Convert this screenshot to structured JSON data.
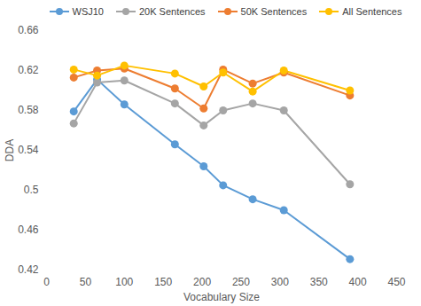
{
  "chart_data": {
    "type": "line",
    "x_label": "Vocabulary Size",
    "y_label": "DDA",
    "x": [
      35,
      65,
      100,
      165,
      202,
      227,
      265,
      305,
      390
    ],
    "series": [
      {
        "name": "WSJ10",
        "color": "#5b9bd5",
        "marker": "circle",
        "values": [
          0.579,
          0.611,
          0.586,
          0.546,
          0.524,
          0.505,
          0.491,
          0.48,
          0.431
        ]
      },
      {
        "name": "20K Sentences",
        "color": "#a5a5a5",
        "marker": "circle",
        "values": [
          0.567,
          0.608,
          0.61,
          0.587,
          0.565,
          0.58,
          0.587,
          0.58,
          0.506
        ]
      },
      {
        "name": "50K Sentences",
        "color": "#ed7d31",
        "marker": "circle",
        "values": [
          0.613,
          0.62,
          0.622,
          0.602,
          0.582,
          0.621,
          0.607,
          0.618,
          0.595
        ]
      },
      {
        "name": "All Sentences",
        "color": "#ffc000",
        "marker": "circle",
        "values": [
          0.621,
          0.615,
          0.625,
          0.617,
          0.604,
          0.618,
          0.599,
          0.62,
          0.6
        ]
      }
    ],
    "xlim": [
      0,
      450
    ],
    "xticks": [
      0,
      50,
      100,
      150,
      200,
      250,
      300,
      350,
      400,
      450
    ],
    "ylim": [
      0.42,
      0.66
    ],
    "yticks": [
      0.42,
      0.46,
      0.5,
      0.54,
      0.58,
      0.62,
      0.66
    ],
    "grid": false,
    "legend": "top"
  }
}
